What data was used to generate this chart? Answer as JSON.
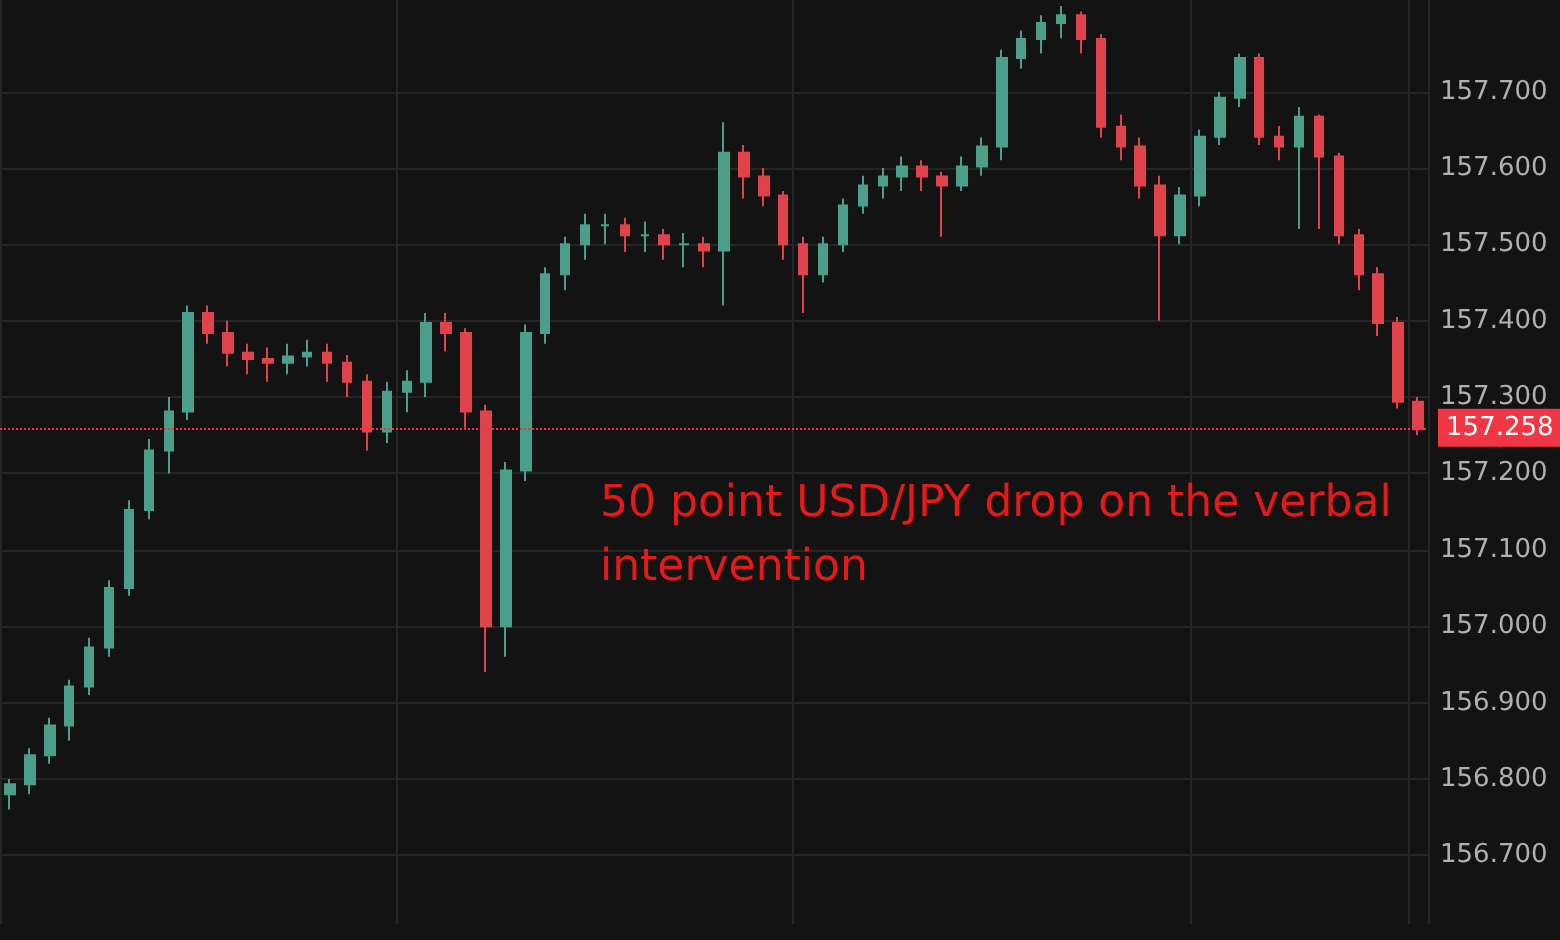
{
  "chart_data": {
    "type": "candlestick",
    "categories": [
      null,
      null,
      null,
      null,
      null,
      null,
      null,
      null,
      null,
      null,
      null,
      null,
      null,
      null,
      null,
      null,
      null,
      null,
      null,
      null,
      null,
      null,
      null,
      null,
      null,
      null,
      null,
      null,
      null,
      null,
      null,
      null,
      null,
      null,
      null,
      null,
      null,
      null,
      null,
      null,
      null,
      null,
      null,
      null,
      null,
      null,
      null,
      null,
      null,
      null,
      null,
      null,
      null,
      null,
      null,
      null,
      null,
      null,
      null,
      null,
      null,
      null,
      null,
      null,
      null,
      null,
      null,
      null,
      null,
      null,
      null,
      null
    ],
    "ohlc": [
      [
        156.78,
        156.8,
        156.76,
        156.793
      ],
      [
        156.793,
        156.84,
        156.78,
        156.831
      ],
      [
        156.831,
        156.88,
        156.82,
        156.87
      ],
      [
        156.87,
        156.93,
        156.85,
        156.921
      ],
      [
        156.921,
        156.985,
        156.91,
        156.972
      ],
      [
        156.972,
        157.06,
        156.96,
        157.05
      ],
      [
        157.05,
        157.165,
        157.04,
        157.152
      ],
      [
        157.152,
        157.245,
        157.14,
        157.23
      ],
      [
        157.23,
        157.3,
        157.2,
        157.281
      ],
      [
        157.281,
        157.42,
        157.27,
        157.41
      ],
      [
        157.41,
        157.42,
        157.37,
        157.384
      ],
      [
        157.384,
        157.4,
        157.34,
        157.358
      ],
      [
        157.358,
        157.37,
        157.33,
        157.35
      ],
      [
        157.35,
        157.365,
        157.32,
        157.345
      ],
      [
        157.345,
        157.37,
        157.33,
        157.353
      ],
      [
        157.353,
        157.375,
        157.34,
        157.358
      ],
      [
        157.358,
        157.37,
        157.32,
        157.345
      ],
      [
        157.345,
        157.355,
        157.3,
        157.32
      ],
      [
        157.32,
        157.33,
        157.23,
        157.255
      ],
      [
        157.255,
        157.32,
        157.24,
        157.307
      ],
      [
        157.307,
        157.335,
        157.28,
        157.32
      ],
      [
        157.32,
        157.41,
        157.3,
        157.397
      ],
      [
        157.397,
        157.41,
        157.36,
        157.384
      ],
      [
        157.384,
        157.39,
        157.26,
        157.281
      ],
      [
        157.281,
        157.29,
        156.94,
        157.0
      ],
      [
        157.0,
        157.215,
        156.96,
        157.204
      ],
      [
        157.204,
        157.395,
        157.19,
        157.384
      ],
      [
        157.384,
        157.47,
        157.37,
        157.461
      ],
      [
        157.461,
        157.51,
        157.44,
        157.5
      ],
      [
        157.5,
        157.54,
        157.48,
        157.525
      ],
      [
        157.525,
        157.54,
        157.5,
        157.525
      ],
      [
        157.525,
        157.535,
        157.49,
        157.512
      ],
      [
        157.512,
        157.53,
        157.49,
        157.512
      ],
      [
        157.512,
        157.52,
        157.48,
        157.5
      ],
      [
        157.5,
        157.515,
        157.47,
        157.5
      ],
      [
        157.5,
        157.51,
        157.47,
        157.492
      ],
      [
        157.492,
        157.66,
        157.42,
        157.62
      ],
      [
        157.62,
        157.63,
        157.56,
        157.589
      ],
      [
        157.589,
        157.6,
        157.55,
        157.564
      ],
      [
        157.564,
        157.57,
        157.48,
        157.5
      ],
      [
        157.5,
        157.51,
        157.41,
        157.461
      ],
      [
        157.461,
        157.51,
        157.45,
        157.5
      ],
      [
        157.5,
        157.56,
        157.49,
        157.551
      ],
      [
        157.551,
        157.59,
        157.54,
        157.577
      ],
      [
        157.577,
        157.6,
        157.56,
        157.589
      ],
      [
        157.589,
        157.615,
        157.57,
        157.602
      ],
      [
        157.602,
        157.61,
        157.57,
        157.589
      ],
      [
        157.589,
        157.595,
        157.51,
        157.577
      ],
      [
        157.577,
        157.615,
        157.57,
        157.602
      ],
      [
        157.602,
        157.64,
        157.59,
        157.628
      ],
      [
        157.628,
        157.755,
        157.61,
        157.744
      ],
      [
        157.744,
        157.78,
        157.73,
        157.769
      ],
      [
        157.769,
        157.8,
        157.75,
        157.79
      ],
      [
        157.79,
        157.812,
        157.77,
        157.8
      ],
      [
        157.8,
        157.805,
        157.75,
        157.769
      ],
      [
        157.769,
        157.775,
        157.64,
        157.654
      ],
      [
        157.654,
        157.67,
        157.61,
        157.628
      ],
      [
        157.628,
        157.64,
        157.56,
        157.577
      ],
      [
        157.577,
        157.59,
        157.4,
        157.512
      ],
      [
        157.512,
        157.575,
        157.5,
        157.564
      ],
      [
        157.564,
        157.65,
        157.55,
        157.641
      ],
      [
        157.641,
        157.7,
        157.63,
        157.692
      ],
      [
        157.692,
        157.75,
        157.68,
        157.744
      ],
      [
        157.744,
        157.75,
        157.63,
        157.641
      ],
      [
        157.641,
        157.655,
        157.61,
        157.628
      ],
      [
        157.628,
        157.68,
        157.52,
        157.667
      ],
      [
        157.667,
        157.67,
        157.52,
        157.615
      ],
      [
        157.615,
        157.62,
        157.5,
        157.512
      ],
      [
        157.512,
        157.52,
        157.44,
        157.461
      ],
      [
        157.461,
        157.47,
        157.38,
        157.397
      ],
      [
        157.397,
        157.405,
        157.285,
        157.294
      ],
      [
        157.294,
        157.3,
        157.25,
        157.258
      ]
    ],
    "ylim": [
      156.61,
      157.82
    ],
    "yticks": [
      {
        "value": 156.7,
        "label": "156.700"
      },
      {
        "value": 156.8,
        "label": "156.800"
      },
      {
        "value": 156.9,
        "label": "156.900"
      },
      {
        "value": 157.0,
        "label": "157.000"
      },
      {
        "value": 157.1,
        "label": "157.100"
      },
      {
        "value": 157.2,
        "label": "157.200"
      },
      {
        "value": 157.3,
        "label": "157.300"
      },
      {
        "value": 157.4,
        "label": "157.400"
      },
      {
        "value": 157.5,
        "label": "157.500"
      },
      {
        "value": 157.6,
        "label": "157.600"
      },
      {
        "value": 157.7,
        "label": "157.700"
      }
    ],
    "ref_lines": [
      {
        "axis": "y",
        "value": 157.258,
        "label": "157.258",
        "color": "#f23645",
        "line_style": "dotted"
      }
    ],
    "annotations": [
      "50 point USD/JPY drop on the verbal intervention"
    ],
    "grid": true
  }
}
